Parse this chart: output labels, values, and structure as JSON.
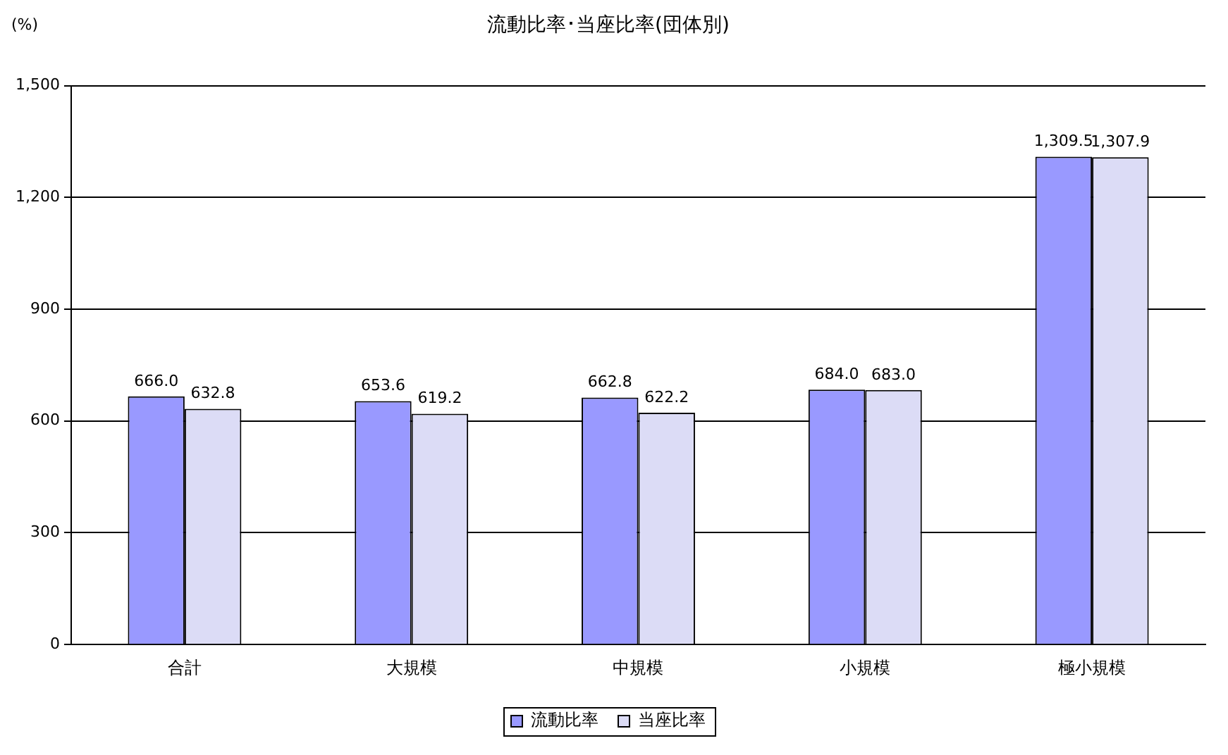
{
  "chart_data": {
    "type": "bar",
    "title": "流動比率･当座比率(団体別)",
    "ylabel": "(%)",
    "categories": [
      "合計",
      "大規模",
      "中規模",
      "小規模",
      "極小規模"
    ],
    "series": [
      {
        "name": "流動比率",
        "color": "#9999ff",
        "values": [
          666.0,
          653.6,
          662.8,
          684.0,
          1309.5
        ],
        "value_labels": [
          "666.0",
          "653.6",
          "662.8",
          "684.0",
          "1,309.5"
        ]
      },
      {
        "name": "当座比率",
        "color": "#dcdcf6",
        "values": [
          632.8,
          619.2,
          622.2,
          683.0,
          1307.9
        ],
        "value_labels": [
          "632.8",
          "619.2",
          "622.2",
          "683.0",
          "1,307.9"
        ]
      }
    ],
    "ylim": [
      0,
      1500
    ],
    "yticks": [
      0,
      300,
      600,
      900,
      {
        "value": 1200,
        "label": "1,200"
      },
      {
        "value": 1500,
        "label": "1,500"
      }
    ],
    "grid": "y",
    "legend": "bottom"
  }
}
